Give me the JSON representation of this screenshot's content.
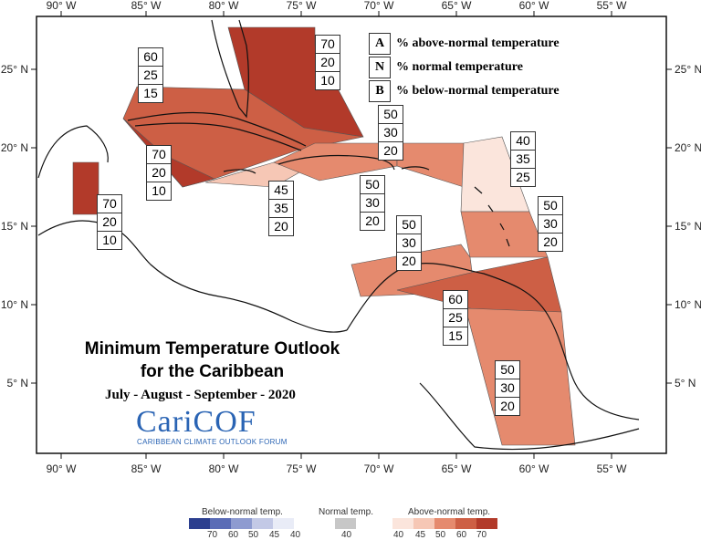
{
  "title": {
    "line1": "Minimum Temperature Outlook",
    "line2": "for the Caribbean",
    "period": "July - August - September - 2020"
  },
  "logo": {
    "name": "CariCOF",
    "subtitle": "CARIBBEAN CLIMATE OUTLOOK FORUM"
  },
  "axes": {
    "lon_labels": [
      "90° W",
      "85° W",
      "80° W",
      "75° W",
      "70° W",
      "65° W",
      "60° W",
      "55° W"
    ],
    "lat_labels": [
      "25° N",
      "20° N",
      "15° N",
      "10° N",
      "5° N"
    ]
  },
  "key_legend": [
    {
      "key": "A",
      "text": "% above-normal temperature"
    },
    {
      "key": "N",
      "text": "% normal temperature"
    },
    {
      "key": "B",
      "text": "% below-normal temperature"
    }
  ],
  "regions": [
    {
      "id": "bahamas",
      "color": "#b23a2a",
      "above": "70",
      "normal": "20",
      "below": "10"
    },
    {
      "id": "cuba",
      "color": "#cd5f45",
      "above": "60",
      "normal": "25",
      "below": "15"
    },
    {
      "id": "cayman",
      "color": "#b23a2a",
      "above": "70",
      "normal": "20",
      "below": "10"
    },
    {
      "id": "belize",
      "color": "#b23a2a",
      "above": "70",
      "normal": "20",
      "below": "10"
    },
    {
      "id": "jamaica",
      "color": "#f6c7b5",
      "above": "45",
      "normal": "35",
      "below": "20"
    },
    {
      "id": "hispaniola",
      "color": "#e58a6e",
      "above": "50",
      "normal": "30",
      "below": "20"
    },
    {
      "id": "puerto-rico",
      "color": "#e58a6e",
      "above": "50",
      "normal": "30",
      "below": "20"
    },
    {
      "id": "leeward",
      "color": "#fbe5dc",
      "above": "40",
      "normal": "35",
      "below": "25"
    },
    {
      "id": "windward",
      "color": "#e58a6e",
      "above": "50",
      "normal": "30",
      "below": "20"
    },
    {
      "id": "abc",
      "color": "#e58a6e",
      "above": "50",
      "normal": "30",
      "below": "20"
    },
    {
      "id": "trinidad",
      "color": "#cd5f45",
      "above": "60",
      "normal": "25",
      "below": "15"
    },
    {
      "id": "guianas",
      "color": "#e58a6e",
      "above": "50",
      "normal": "30",
      "below": "20"
    }
  ],
  "colorbar": {
    "below": {
      "title": "Below-normal temp.",
      "ticks": [
        "70",
        "60",
        "50",
        "45",
        "40"
      ],
      "colors": [
        "#2c3f8f",
        "#5a6cb6",
        "#8e9bd0",
        "#c3c9e6",
        "#e9ecf7"
      ]
    },
    "normal": {
      "title": "Normal temp.",
      "ticks": [
        "40"
      ],
      "colors": [
        "#c7c7c7"
      ]
    },
    "above": {
      "title": "Above-normal temp.",
      "ticks": [
        "40",
        "45",
        "50",
        "60",
        "70"
      ],
      "colors": [
        "#fbe5dc",
        "#f6c7b5",
        "#e58a6e",
        "#cd5f45",
        "#b23a2a"
      ]
    }
  }
}
